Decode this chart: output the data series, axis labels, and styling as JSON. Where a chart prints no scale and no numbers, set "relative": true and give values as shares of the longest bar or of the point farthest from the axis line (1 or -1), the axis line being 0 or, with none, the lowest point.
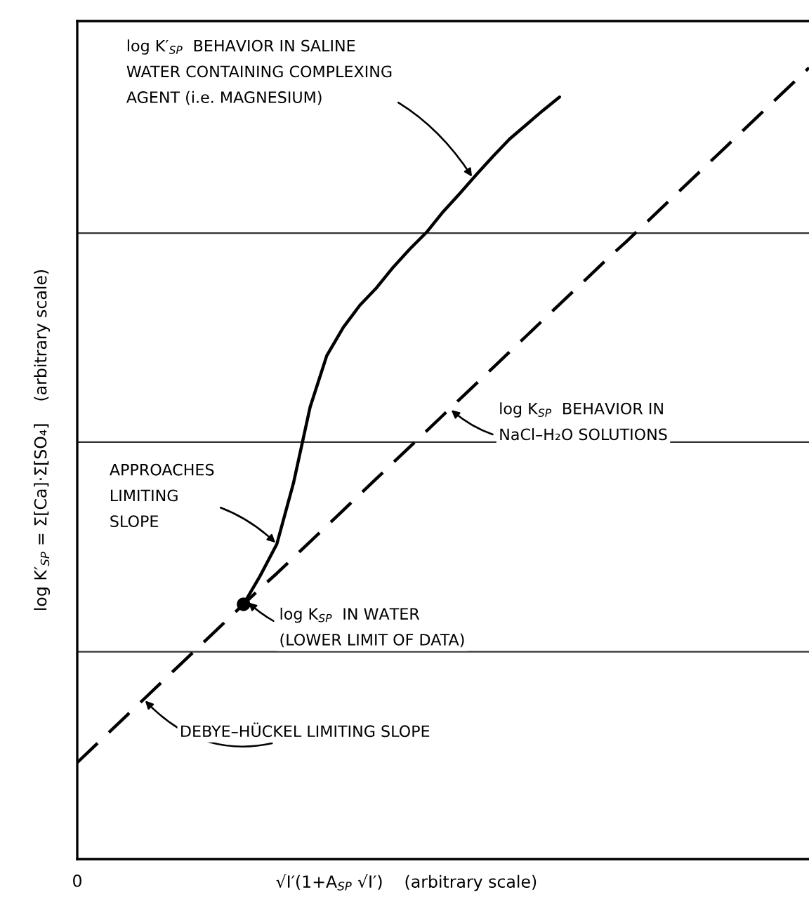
{
  "chart_data": {
    "type": "line",
    "relative": true,
    "xlabel": "√I′(1+A$_{SP}$ √I′)    (arbitrary scale)",
    "ylabel": "log K′$_{SP}$ = Σ[Ca]·Σ[SO₄]    (arbitrary scale)",
    "categories": [
      null,
      null,
      null,
      null,
      null,
      null,
      null,
      null,
      null,
      null,
      null,
      null,
      null,
      null,
      null,
      null,
      null,
      null,
      null,
      null,
      null,
      null,
      null,
      null,
      null,
      null,
      null,
      null,
      null,
      null,
      null,
      null,
      null,
      null,
      null,
      null,
      null,
      null,
      null,
      null,
      null,
      null,
      null,
      null,
      null
    ],
    "legend": false,
    "grid": false,
    "series": [
      {
        "color": "#000000",
        "line_style": "solid",
        "values": [
          null,
          null,
          null,
          null,
          null,
          null,
          null,
          null,
          null,
          null,
          0.322,
          0.358,
          0.398,
          0.475,
          0.571,
          0.636,
          0.672,
          0.7,
          0.722,
          0.748,
          0.771,
          0.792,
          0.818,
          0.841,
          0.865,
          0.888,
          0.91,
          0.928,
          0.946,
          0.963,
          null,
          null,
          null,
          null,
          null,
          null,
          null,
          null,
          null,
          null,
          null,
          null,
          null,
          null,
          null
        ]
      },
      {
        "color": "#000000",
        "line_style": "dashed",
        "values": [
          0.122,
          0.142,
          0.162,
          0.182,
          0.202,
          0.222,
          0.242,
          0.262,
          0.282,
          0.302,
          0.322,
          0.342,
          0.361,
          0.381,
          0.401,
          0.421,
          0.441,
          0.461,
          0.481,
          0.501,
          0.521,
          0.541,
          0.561,
          0.581,
          0.601,
          0.621,
          0.641,
          0.661,
          0.681,
          0.701,
          0.721,
          0.741,
          0.761,
          0.78,
          0.8,
          0.82,
          0.84,
          0.86,
          0.88,
          0.9,
          0.92,
          0.94,
          0.96,
          0.98,
          1.0
        ]
      },
      {
        "color": "#000000",
        "line_style": "solid",
        "marker": "circle",
        "values": [
          null,
          null,
          null,
          null,
          null,
          null,
          null,
          null,
          null,
          null,
          0.322,
          null,
          null,
          null,
          null,
          null,
          null,
          null,
          null,
          null,
          null,
          null,
          null,
          null,
          null,
          null,
          null,
          null,
          null,
          null,
          null,
          null,
          null,
          null,
          null,
          null,
          null,
          null,
          null,
          null,
          null,
          null,
          null,
          null,
          null
        ]
      }
    ],
    "ref_lines": [
      {
        "axis": "y",
        "value": 0.791,
        "color": "#333333",
        "line_style": "solid"
      },
      {
        "axis": "y",
        "value": 0.527,
        "color": "#333333",
        "line_style": "solid"
      },
      {
        "axis": "y",
        "value": 0.262,
        "color": "#333333",
        "line_style": "solid"
      }
    ],
    "annotations": [
      "log K′$_{SP}$  BEHAVIOR IN SALINE\nWATER CONTAINING COMPLEXING\nAGENT (i.e. MAGNESIUM)",
      "log K$_{SP}$  BEHAVIOR IN\nNaCl–H₂O SOLUTIONS",
      "APPROACHES\nLIMITING\nSLOPE",
      "log K$_{SP}$  IN WATER\n(LOWER LIMIT OF DATA)",
      "DEBYE–HÜCKEL LIMITING SLOPE",
      "0"
    ]
  }
}
